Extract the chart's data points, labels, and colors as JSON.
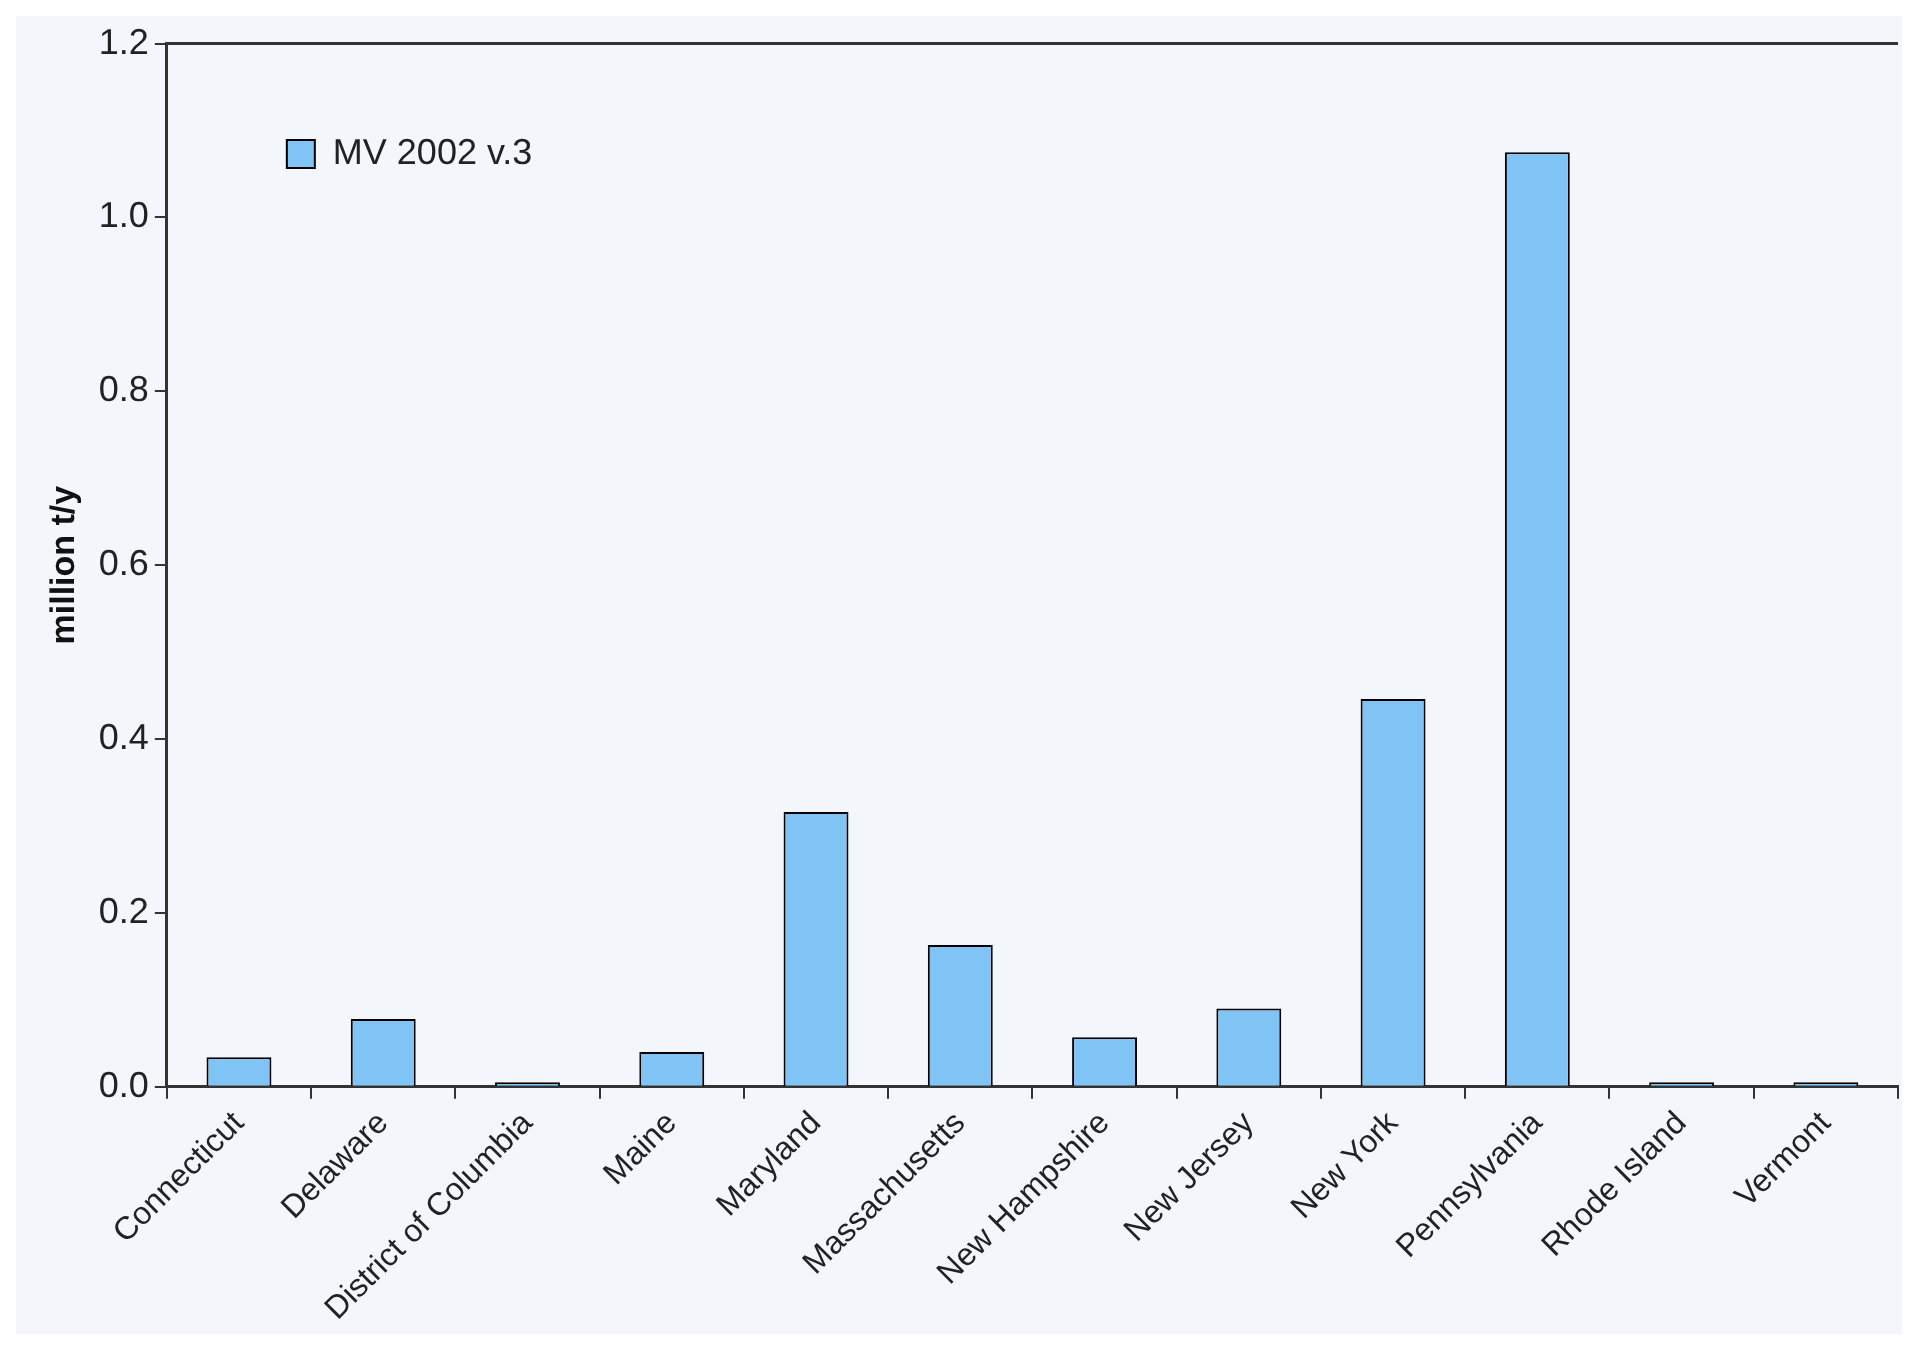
{
  "chart_data": {
    "type": "bar",
    "categories": [
      "Connecticut",
      "Delaware",
      "District of Columbia",
      "Maine",
      "Maryland",
      "Massachusetts",
      "New Hampshire",
      "New Jersey",
      "New York",
      "Pennsylvania",
      "Rhode Island",
      "Vermont"
    ],
    "series": [
      {
        "name": "MV 2002 v.3",
        "color": "#7fc4f4",
        "values": [
          0.034,
          0.078,
          0.005,
          0.04,
          0.316,
          0.163,
          0.057,
          0.09,
          0.446,
          1.075,
          0.005,
          0.005
        ]
      }
    ],
    "ylabel": "million t/y",
    "ylim": [
      0,
      1.2
    ],
    "yticks": [
      {
        "value": 0,
        "label": "0.0"
      },
      0.2,
      0.4,
      0.6,
      0.8,
      {
        "value": 1,
        "label": "1.0"
      },
      1.2
    ],
    "legend": "top left"
  }
}
